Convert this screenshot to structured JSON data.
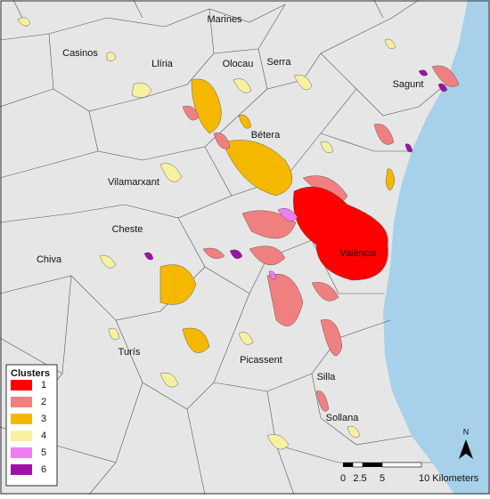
{
  "places": [
    {
      "label": "Marines"
    },
    {
      "label": "Casinos"
    },
    {
      "label": "Llíria"
    },
    {
      "label": "Olocau"
    },
    {
      "label": "Serra"
    },
    {
      "label": "Sagunt"
    },
    {
      "label": "Bétera"
    },
    {
      "label": "Vilamarxant"
    },
    {
      "label": "Cheste"
    },
    {
      "label": "València"
    },
    {
      "label": "Chiva"
    },
    {
      "label": "Turís"
    },
    {
      "label": "Picassent"
    },
    {
      "label": "Silla"
    },
    {
      "label": "Sollana"
    }
  ],
  "legend": {
    "title": "Clusters",
    "items": [
      {
        "label": "1",
        "color": "#ff0000"
      },
      {
        "label": "2",
        "color": "#f08080"
      },
      {
        "label": "3",
        "color": "#f5b800"
      },
      {
        "label": "4",
        "color": "#f7f0a0"
      },
      {
        "label": "5",
        "color": "#f07df0"
      },
      {
        "label": "6",
        "color": "#a010a8"
      }
    ]
  },
  "scale_bar": {
    "labels": [
      "0",
      "2.5",
      "5",
      "10 Kilometers"
    ]
  },
  "north_arrow": {
    "label": "N"
  }
}
